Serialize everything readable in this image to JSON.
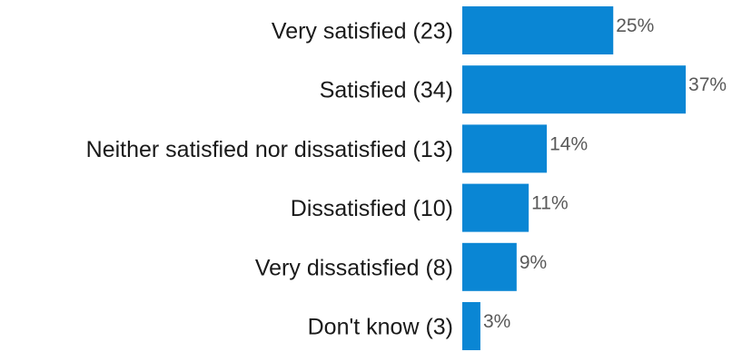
{
  "chart_data": {
    "type": "bar",
    "orientation": "horizontal",
    "categories": [
      "Very satisfied (23)",
      "Satisfied (34)",
      "Neither satisfied nor dissatisfied (13)",
      "Dissatisfied (10)",
      "Very dissatisfied (8)",
      "Don't know (3)"
    ],
    "values": [
      25,
      37,
      14,
      11,
      9,
      3
    ],
    "value_labels": [
      "25%",
      "37%",
      "14%",
      "11%",
      "9%",
      "3%"
    ],
    "unit": "%",
    "bar_color": "#0A86D4",
    "title": "",
    "xlabel": "",
    "ylabel": "",
    "grid": false,
    "legend": "none"
  }
}
